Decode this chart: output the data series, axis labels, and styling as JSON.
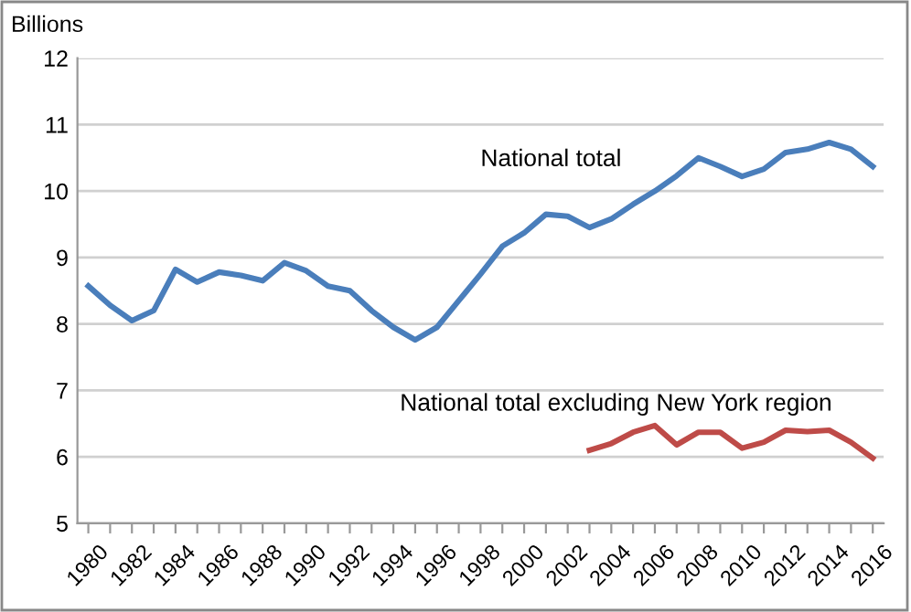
{
  "chart_data": {
    "type": "line",
    "ylabel": "Billions",
    "x": [
      1980,
      1981,
      1982,
      1983,
      1984,
      1985,
      1986,
      1987,
      1988,
      1989,
      1990,
      1991,
      1992,
      1993,
      1994,
      1995,
      1996,
      1997,
      1998,
      1999,
      2000,
      2001,
      2002,
      2003,
      2004,
      2005,
      2006,
      2007,
      2008,
      2009,
      2010,
      2011,
      2012,
      2013,
      2014,
      2015,
      2016
    ],
    "series": [
      {
        "name": "National total",
        "color": "#4a7ebb",
        "values": [
          8.57,
          8.28,
          8.05,
          8.2,
          8.82,
          8.63,
          8.78,
          8.73,
          8.65,
          8.92,
          8.8,
          8.57,
          8.5,
          8.2,
          7.95,
          7.76,
          7.95,
          8.35,
          8.75,
          9.17,
          9.37,
          9.65,
          9.62,
          9.45,
          9.58,
          9.8,
          10.0,
          10.23,
          10.5,
          10.37,
          10.22,
          10.33,
          10.58,
          10.63,
          10.73,
          10.63,
          10.37
        ]
      },
      {
        "name": "National total excluding New York region",
        "color": "#be4b48",
        "x": [
          2003,
          2004,
          2005,
          2006,
          2007,
          2008,
          2009,
          2010,
          2011,
          2012,
          2013,
          2014,
          2015,
          2016
        ],
        "values": [
          6.1,
          6.2,
          6.37,
          6.47,
          6.18,
          6.37,
          6.37,
          6.13,
          6.22,
          6.4,
          6.38,
          6.4,
          6.22,
          5.98
        ]
      }
    ],
    "xlim": [
      1979.5,
      2016.5
    ],
    "xticks": [
      1980,
      {
        "value": 1981,
        "label": null
      },
      1982,
      {
        "value": 1983,
        "label": null
      },
      1984,
      {
        "value": 1985,
        "label": null
      },
      1986,
      {
        "value": 1987,
        "label": null
      },
      1988,
      {
        "value": 1989,
        "label": null
      },
      1990,
      {
        "value": 1991,
        "label": null
      },
      1992,
      {
        "value": 1993,
        "label": null
      },
      1994,
      {
        "value": 1995,
        "label": null
      },
      1996,
      {
        "value": 1997,
        "label": null
      },
      1998,
      {
        "value": 1999,
        "label": null
      },
      2000,
      {
        "value": 2001,
        "label": null
      },
      2002,
      {
        "value": 2003,
        "label": null
      },
      2004,
      {
        "value": 2005,
        "label": null
      },
      2006,
      {
        "value": 2007,
        "label": null
      },
      2008,
      {
        "value": 2009,
        "label": null
      },
      2010,
      {
        "value": 2011,
        "label": null
      },
      2012,
      {
        "value": 2013,
        "label": null
      },
      2014,
      {
        "value": 2015,
        "label": null
      },
      2016
    ],
    "ylim": [
      5,
      12
    ],
    "yticks": [
      5,
      6,
      7,
      8,
      9,
      10,
      11,
      12
    ],
    "grid": "y",
    "legend": false,
    "marker": "none",
    "line_style": "solid"
  }
}
